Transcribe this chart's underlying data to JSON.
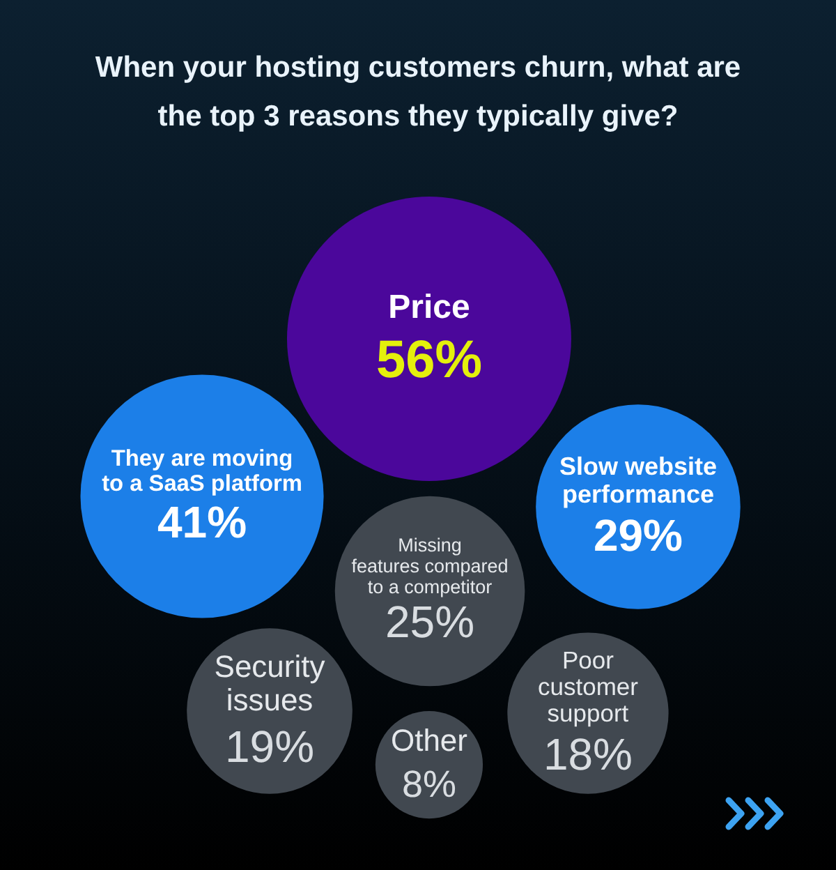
{
  "chart_data": {
    "type": "other",
    "title": "When your hosting customers churn, what are the top 3 reasons they typically give?",
    "categories": [
      "Price",
      "They are moving\nto a SaaS platform",
      "Slow website\nperformance",
      "Missing\nfeatures compared\nto a competitor",
      "Security\nissues",
      "Other",
      "Poor\ncustomer\nsupport"
    ],
    "values": [
      56,
      41,
      29,
      25,
      19,
      8,
      18
    ],
    "value_labels": [
      "56%",
      "41%",
      "29%",
      "25%",
      "19%",
      "8%",
      "18%"
    ],
    "colors": [
      "#4b079b",
      "#1c7fe8",
      "#1c7fe8",
      "#414850",
      "#414850",
      "#414850",
      "#414850"
    ]
  }
}
